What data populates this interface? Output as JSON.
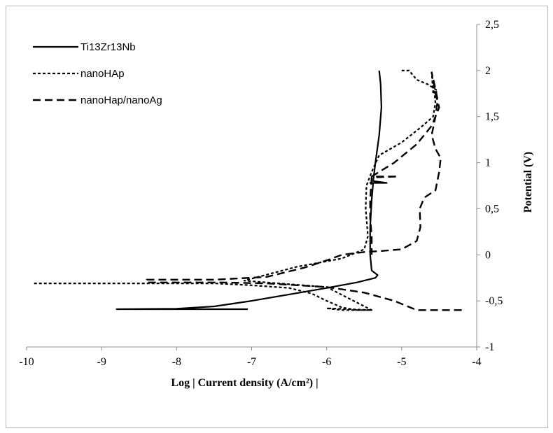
{
  "chart_data": {
    "type": "line",
    "xlabel": "Log | Current density (A/cm²) |",
    "ylabel": "Potential  (V)",
    "xlim": [
      -10,
      -4
    ],
    "ylim": [
      -1,
      2.5
    ],
    "x_ticks": [
      "-10",
      "-9",
      "-8",
      "-7",
      "-6",
      "-5",
      "-4"
    ],
    "y_ticks": [
      "-1",
      "-0,5",
      "0",
      "0,5",
      "1",
      "1,5",
      "2",
      "2,5"
    ],
    "x_tick_values": [
      -10,
      -9,
      -8,
      -7,
      -6,
      -5,
      -4
    ],
    "y_tick_values": [
      -1,
      -0.5,
      0,
      0.5,
      1,
      1.5,
      2,
      2.5
    ],
    "grid": false,
    "legend_position": "top-left",
    "series": [
      {
        "name": "Ti13Zr13Nb",
        "style": "solid",
        "color": "#000000",
        "points": [
          [
            -7.05,
            -0.59
          ],
          [
            -8.8,
            -0.59
          ],
          [
            -8.0,
            -0.585
          ],
          [
            -7.5,
            -0.56
          ],
          [
            -7.0,
            -0.5
          ],
          [
            -6.5,
            -0.43
          ],
          [
            -6.0,
            -0.36
          ],
          [
            -5.6,
            -0.3
          ],
          [
            -5.35,
            -0.25
          ],
          [
            -5.32,
            -0.22
          ],
          [
            -5.4,
            -0.17
          ],
          [
            -5.42,
            0.0
          ],
          [
            -5.42,
            0.3
          ],
          [
            -5.4,
            0.6
          ],
          [
            -5.38,
            0.78
          ],
          [
            -5.42,
            0.78
          ],
          [
            -5.2,
            0.78
          ],
          [
            -5.38,
            0.8
          ],
          [
            -5.35,
            1.0
          ],
          [
            -5.3,
            1.3
          ],
          [
            -5.27,
            1.6
          ],
          [
            -5.28,
            1.85
          ],
          [
            -5.3,
            2.0
          ]
        ]
      },
      {
        "name": "nanoHAp",
        "style": "dotted",
        "color": "#000000",
        "points": [
          [
            -9.9,
            -0.31
          ],
          [
            -8.5,
            -0.31
          ],
          [
            -7.5,
            -0.31
          ],
          [
            -7.0,
            -0.33
          ],
          [
            -6.5,
            -0.36
          ],
          [
            -6.2,
            -0.42
          ],
          [
            -6.0,
            -0.5
          ],
          [
            -5.8,
            -0.57
          ],
          [
            -5.6,
            -0.6
          ],
          [
            -5.4,
            -0.6
          ],
          [
            -6.0,
            -0.58
          ],
          [
            -5.8,
            -0.6
          ],
          [
            -5.4,
            -0.6
          ],
          [
            -6.0,
            -0.35
          ],
          [
            -6.8,
            -0.3
          ],
          [
            -7.1,
            -0.28
          ],
          [
            -6.4,
            -0.13
          ],
          [
            -5.8,
            -0.04
          ],
          [
            -5.5,
            0.06
          ],
          [
            -5.45,
            0.2
          ],
          [
            -5.48,
            0.5
          ],
          [
            -5.47,
            0.75
          ],
          [
            -5.4,
            0.9
          ],
          [
            -5.3,
            1.08
          ],
          [
            -5.0,
            1.22
          ],
          [
            -4.75,
            1.38
          ],
          [
            -4.58,
            1.5
          ],
          [
            -4.55,
            1.65
          ],
          [
            -4.57,
            1.8
          ],
          [
            -4.6,
            1.98
          ],
          [
            -4.58,
            1.75
          ],
          [
            -4.52,
            1.78
          ],
          [
            -4.65,
            1.85
          ],
          [
            -4.8,
            1.9
          ],
          [
            -4.9,
            2.0
          ],
          [
            -5.0,
            2.0
          ]
        ]
      },
      {
        "name": "nanoHap/nanoAg",
        "style": "dashed",
        "color": "#000000",
        "points": [
          [
            -4.2,
            -0.6
          ],
          [
            -4.8,
            -0.6
          ],
          [
            -5.1,
            -0.5
          ],
          [
            -5.5,
            -0.41
          ],
          [
            -6.0,
            -0.35
          ],
          [
            -6.8,
            -0.31
          ],
          [
            -7.4,
            -0.3
          ],
          [
            -8.0,
            -0.3
          ],
          [
            -8.4,
            -0.3
          ],
          [
            -8.4,
            -0.27
          ],
          [
            -7.5,
            -0.27
          ],
          [
            -6.8,
            -0.24
          ],
          [
            -6.3,
            -0.14
          ],
          [
            -6.0,
            -0.06
          ],
          [
            -5.8,
            0.0
          ],
          [
            -5.5,
            0.03
          ],
          [
            -5.3,
            0.04
          ],
          [
            -5.0,
            0.06
          ],
          [
            -4.8,
            0.15
          ],
          [
            -4.75,
            0.3
          ],
          [
            -4.76,
            0.5
          ],
          [
            -4.7,
            0.62
          ],
          [
            -4.55,
            0.7
          ],
          [
            -4.5,
            0.9
          ],
          [
            -4.48,
            1.05
          ],
          [
            -4.55,
            1.15
          ],
          [
            -4.6,
            1.3
          ],
          [
            -4.55,
            1.5
          ],
          [
            -4.52,
            1.68
          ],
          [
            -4.55,
            1.8
          ],
          [
            -4.6,
            1.98
          ],
          [
            -4.58,
            1.9
          ],
          [
            -4.55,
            1.75
          ],
          [
            -4.5,
            1.6
          ],
          [
            -4.6,
            1.4
          ],
          [
            -4.8,
            1.2
          ],
          [
            -5.1,
            1.0
          ],
          [
            -5.3,
            0.9
          ],
          [
            -5.4,
            0.85
          ],
          [
            -5.05,
            0.85
          ],
          [
            -5.4,
            0.84
          ],
          [
            -5.42,
            0.6
          ],
          [
            -5.42,
            0.4
          ],
          [
            -5.4,
            0.2
          ],
          [
            -5.4,
            0.0
          ]
        ]
      }
    ]
  }
}
